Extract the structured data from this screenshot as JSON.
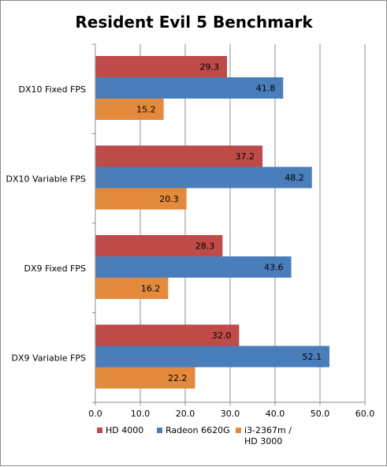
{
  "chart_data": {
    "type": "bar",
    "orientation": "horizontal",
    "title": "Resident Evil 5 Benchmark",
    "categories": [
      "DX10 Fixed FPS",
      "DX10 Variable FPS",
      "DX9 Fixed FPS",
      "DX9 Variable FPS"
    ],
    "series": [
      {
        "name": "HD 4000",
        "color": "#be4b48",
        "values": [
          29.3,
          37.2,
          28.3,
          32.0
        ]
      },
      {
        "name": "Radeon 6620G",
        "color": "#4a7ebb",
        "values": [
          41.8,
          48.2,
          43.6,
          52.1
        ]
      },
      {
        "name": "i3-2367m / HD 3000",
        "legend_lines": [
          "i3-2367m /",
          "HD 3000"
        ],
        "color": "#e38a3c",
        "values": [
          15.2,
          20.3,
          16.2,
          22.2
        ]
      }
    ],
    "xlim": [
      0,
      60
    ],
    "ticks": [
      "0.0",
      "10.0",
      "20.0",
      "30.0",
      "40.0",
      "50.0",
      "60.0"
    ],
    "grid": true,
    "legend_position": "bottom",
    "value_format_decimals": 1
  }
}
